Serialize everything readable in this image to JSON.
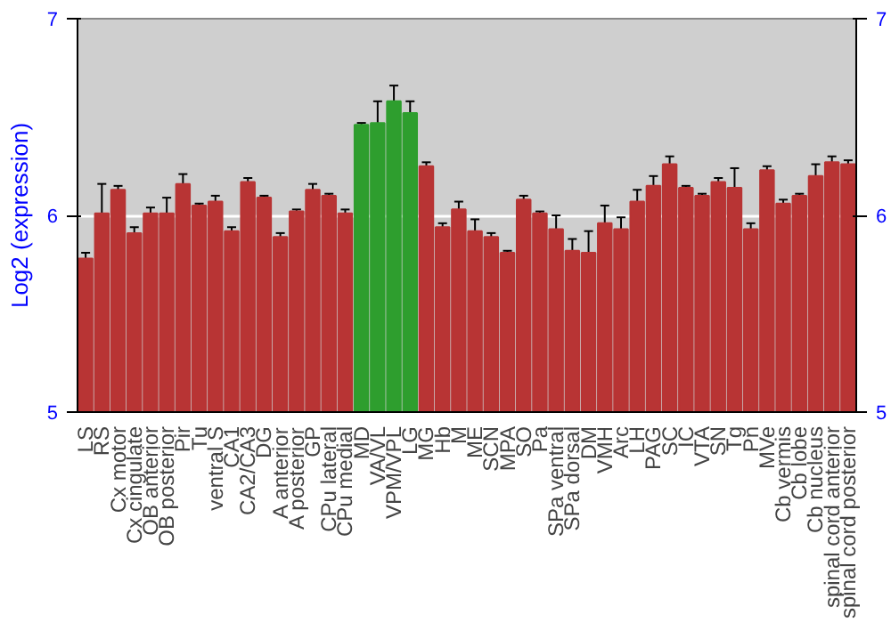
{
  "chart_data": {
    "type": "bar",
    "ylabel": "Log2 (expression)",
    "categories": [
      "LS",
      "RS",
      "Cx motor",
      "Cx cingulate",
      "OB anterior",
      "OB posterior",
      "Pir",
      "Tu",
      "ventral S",
      "CA1",
      "CA2/CA3",
      "DG",
      "A anterior",
      "A posterior",
      "GP",
      "CPu lateral",
      "CPu medial",
      "MD",
      "VA/VL",
      "VPM/VPL",
      "LG",
      "MG",
      "Hb",
      "M",
      "ME",
      "SCN",
      "MPA",
      "SO",
      "Pa",
      "SPa ventral",
      "SPa dorsal",
      "DM",
      "VMH",
      "Arc",
      "LH",
      "PAG",
      "SC",
      "IC",
      "VTA",
      "SN",
      "Tg",
      "Pn",
      "MVe",
      "Cb vermis",
      "Cb lobe",
      "Cb nucleus",
      "spinal cord anterior",
      "spinal cord posterior"
    ],
    "values": [
      5.78,
      6.01,
      6.13,
      5.91,
      6.01,
      6.01,
      6.16,
      6.05,
      6.07,
      5.92,
      6.17,
      6.09,
      5.89,
      6.02,
      6.13,
      6.1,
      6.01,
      6.46,
      6.47,
      6.58,
      6.52,
      6.25,
      5.94,
      6.03,
      5.92,
      5.89,
      5.81,
      6.08,
      6.01,
      5.93,
      5.82,
      5.81,
      5.96,
      5.93,
      6.07,
      6.15,
      6.26,
      6.14,
      6.1,
      6.17,
      6.14,
      5.93,
      6.23,
      6.06,
      6.1,
      6.2,
      6.27,
      6.26
    ],
    "errors": [
      0.03,
      0.15,
      0.02,
      0.03,
      0.03,
      0.08,
      0.05,
      0.01,
      0.03,
      0.02,
      0.02,
      0.01,
      0.02,
      0.01,
      0.03,
      0.01,
      0.02,
      0.01,
      0.11,
      0.08,
      0.06,
      0.02,
      0.02,
      0.04,
      0.06,
      0.02,
      0.01,
      0.02,
      0.01,
      0.07,
      0.06,
      0.11,
      0.09,
      0.06,
      0.06,
      0.05,
      0.04,
      0.01,
      0.01,
      0.02,
      0.1,
      0.03,
      0.02,
      0.02,
      0.01,
      0.06,
      0.03,
      0.02
    ],
    "colors": [
      "#b83434",
      "#b83434",
      "#b83434",
      "#b83434",
      "#b83434",
      "#b83434",
      "#b83434",
      "#b83434",
      "#b83434",
      "#b83434",
      "#b83434",
      "#b83434",
      "#b83434",
      "#b83434",
      "#b83434",
      "#b83434",
      "#b83434",
      "#2e9e2e",
      "#2e9e2e",
      "#2e9e2e",
      "#2e9e2e",
      "#b83434",
      "#b83434",
      "#b83434",
      "#b83434",
      "#b83434",
      "#b83434",
      "#b83434",
      "#b83434",
      "#b83434",
      "#b83434",
      "#b83434",
      "#b83434",
      "#b83434",
      "#b83434",
      "#b83434",
      "#b83434",
      "#b83434",
      "#b83434",
      "#b83434",
      "#b83434",
      "#b83434",
      "#b83434",
      "#b83434",
      "#b83434",
      "#b83434",
      "#b83434",
      "#b83434"
    ],
    "ylim": [
      5,
      7
    ],
    "yticks": [
      5,
      6,
      7
    ],
    "y2lim": [
      5,
      7
    ],
    "y2ticks": [
      5,
      6,
      7
    ],
    "grid": "y"
  }
}
